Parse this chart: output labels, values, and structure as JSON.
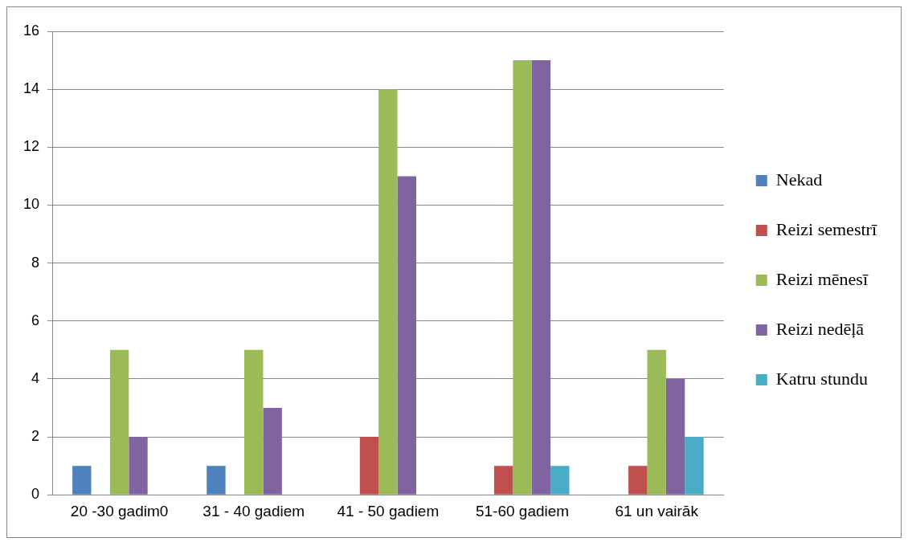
{
  "chart_data": {
    "type": "bar",
    "categories": [
      "20 -30 gadim0",
      "31 - 40 gadiem",
      "41 - 50 gadiem",
      "51-60 gadiem",
      "61 un vairāk"
    ],
    "series": [
      {
        "name": "Nekad",
        "color": "#4f81bd",
        "values": [
          1,
          1,
          0,
          0,
          0
        ]
      },
      {
        "name": "Reizi semestrī",
        "color": "#c0504d",
        "values": [
          0,
          0,
          2,
          1,
          1
        ]
      },
      {
        "name": "Reizi mēnesī",
        "color": "#9bbb59",
        "values": [
          5,
          5,
          14,
          15,
          5
        ]
      },
      {
        "name": "Reizi nedēļā",
        "color": "#8064a2",
        "values": [
          2,
          3,
          11,
          15,
          4
        ]
      },
      {
        "name": "Katru stundu",
        "color": "#4bacc6",
        "values": [
          0,
          0,
          0,
          1,
          2
        ]
      }
    ],
    "ylim": [
      0,
      16
    ],
    "yticks": [
      0,
      2,
      4,
      6,
      8,
      10,
      12,
      14,
      16
    ],
    "grid": "y",
    "legend": "right"
  }
}
